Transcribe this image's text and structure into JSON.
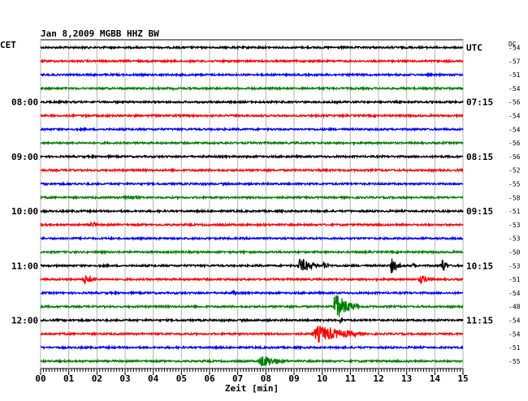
{
  "chart_data": {
    "type": "line",
    "title": "Jan 8,2009   MGBB HHZ BW",
    "station": "MGBB HHZ BW",
    "date": "Jan 8,2009",
    "left_timezone": "CET",
    "right_timezone": "UTC",
    "dc_header": "DC",
    "xlabel": "Zeit [min]",
    "x_ticks": [
      "00",
      "01",
      "02",
      "03",
      "04",
      "05",
      "06",
      "07",
      "08",
      "09",
      "10",
      "11",
      "12",
      "13",
      "14",
      "15"
    ],
    "xlim": [
      0,
      15
    ],
    "rows_per_hour": 4,
    "trace_colors": [
      "#000000",
      "#ff0000",
      "#0000ff",
      "#008000"
    ],
    "left_time_labels": [
      {
        "row": 4,
        "label": "08:00"
      },
      {
        "row": 8,
        "label": "09:00"
      },
      {
        "row": 12,
        "label": "10:00"
      },
      {
        "row": 16,
        "label": "11:00"
      },
      {
        "row": 20,
        "label": "12:00"
      }
    ],
    "right_time_labels": [
      {
        "row": 0,
        "label": "UTC"
      },
      {
        "row": 4,
        "label": "07:15"
      },
      {
        "row": 8,
        "label": "08:15"
      },
      {
        "row": 12,
        "label": "09:15"
      },
      {
        "row": 16,
        "label": "10:15"
      },
      {
        "row": 20,
        "label": "11:15"
      }
    ],
    "dc_offsets": [
      "-54",
      "-57",
      "-51",
      "-54",
      "-56",
      "-54",
      "-54",
      "-56",
      "-56",
      "-52",
      "-55",
      "-58",
      "-51",
      "-53",
      "-53",
      "-50",
      "-53",
      "-51",
      "-54",
      "-48",
      "-54",
      "-54",
      "-51",
      "-55"
    ],
    "events": [
      {
        "row": 11,
        "x_min": 2.9,
        "width_min": 0.6,
        "amp": 3
      },
      {
        "row": 13,
        "x_min": 1.75,
        "width_min": 0.3,
        "amp": 4
      },
      {
        "row": 16,
        "x_min": 9.1,
        "width_min": 0.8,
        "amp": 9
      },
      {
        "row": 16,
        "x_min": 10.0,
        "width_min": 0.3,
        "amp": 5
      },
      {
        "row": 16,
        "x_min": 12.4,
        "width_min": 0.4,
        "amp": 9
      },
      {
        "row": 16,
        "x_min": 13.2,
        "width_min": 0.15,
        "amp": 4
      },
      {
        "row": 16,
        "x_min": 14.2,
        "width_min": 0.3,
        "amp": 10
      },
      {
        "row": 17,
        "x_min": 1.5,
        "width_min": 0.5,
        "amp": 5
      },
      {
        "row": 17,
        "x_min": 13.4,
        "width_min": 0.5,
        "amp": 5
      },
      {
        "row": 18,
        "x_min": 6.8,
        "width_min": 0.2,
        "amp": 3
      },
      {
        "row": 19,
        "x_min": 10.4,
        "width_min": 0.9,
        "amp": 14,
        "spike_up": 20
      },
      {
        "row": 20,
        "x_min": 10.6,
        "width_min": 0.2,
        "amp": 4
      },
      {
        "row": 21,
        "x_min": 9.6,
        "width_min": 1.8,
        "amp": 10
      },
      {
        "row": 23,
        "x_min": 7.7,
        "width_min": 1.1,
        "amp": 7
      }
    ]
  }
}
